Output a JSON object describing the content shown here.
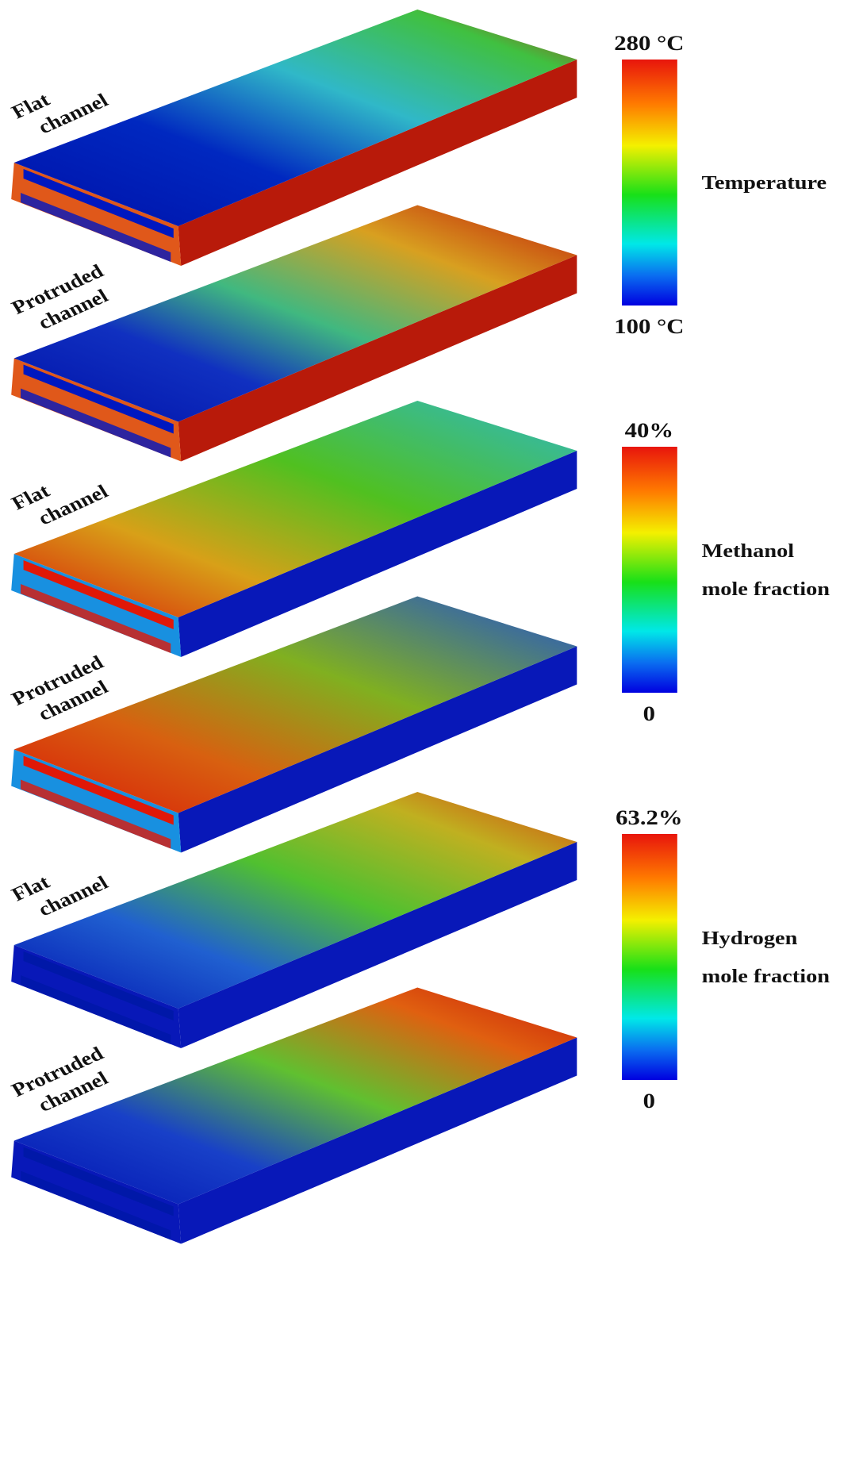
{
  "panels": [
    {
      "label": [
        "Flat",
        "channel"
      ]
    },
    {
      "label": [
        "Protruded",
        "channel"
      ]
    },
    {
      "label": [
        "Flat",
        "channel"
      ]
    },
    {
      "label": [
        "Protruded",
        "channel"
      ]
    },
    {
      "label": [
        "Flat",
        "channel"
      ]
    },
    {
      "label": [
        "Protruded",
        "channel"
      ]
    }
  ],
  "colorbars": [
    {
      "max": "280 °C",
      "min": "100 °C",
      "title": [
        "Temperature"
      ]
    },
    {
      "max": "40%",
      "min": "0",
      "title": [
        "Methanol",
        "mole fraction"
      ]
    },
    {
      "max": "63.2%",
      "min": "0",
      "title": [
        "Hydrogen",
        "mole fraction"
      ]
    }
  ]
}
